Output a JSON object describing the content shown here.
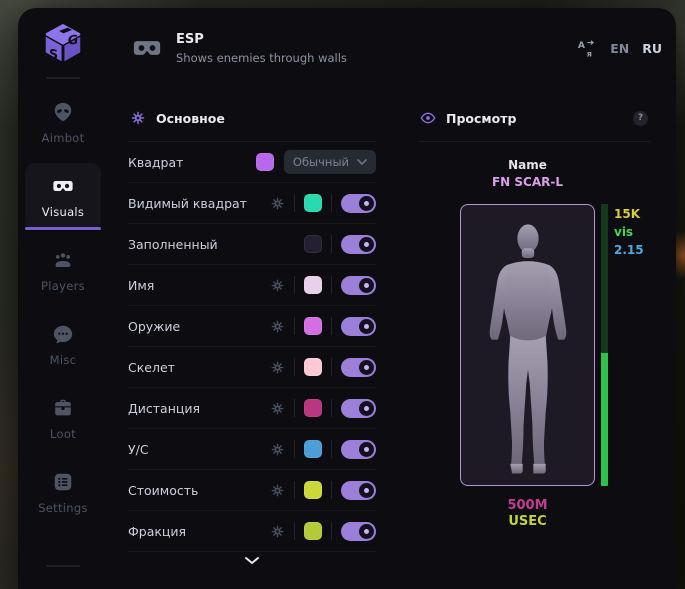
{
  "window": {
    "header": {
      "title": "ESP",
      "subtitle": "Shows enemies through walls",
      "languages": [
        {
          "code": "EN",
          "active": false
        },
        {
          "code": "RU",
          "active": true
        }
      ]
    },
    "sidebar": {
      "items": [
        {
          "id": "aimbot",
          "label": "Aimbot",
          "icon": "alien-icon",
          "active": false
        },
        {
          "id": "visuals",
          "label": "Visuals",
          "icon": "goggles-icon",
          "active": true
        },
        {
          "id": "players",
          "label": "Players",
          "icon": "players-icon",
          "active": false
        },
        {
          "id": "misc",
          "label": "Misc",
          "icon": "chat-icon",
          "active": false
        },
        {
          "id": "loot",
          "label": "Loot",
          "icon": "toolbox-icon",
          "active": false
        },
        {
          "id": "settings",
          "label": "Settings",
          "icon": "list-icon",
          "active": false
        }
      ]
    },
    "main_panel": {
      "title": "Основное",
      "rows": [
        {
          "label": "Квадрат",
          "gear": false,
          "swatch": "#b868ec",
          "control": "dropdown",
          "value": "Обычный"
        },
        {
          "label": "Видимый квадрат",
          "gear": true,
          "swatch": "#2bd9b0",
          "control": "toggle",
          "on": true
        },
        {
          "label": "Заполненный",
          "gear": false,
          "swatch": "#242031",
          "control": "toggle",
          "on": true
        },
        {
          "label": "Имя",
          "gear": true,
          "swatch": "#e9d0e9",
          "control": "toggle",
          "on": true
        },
        {
          "label": "Оружие",
          "gear": true,
          "swatch": "#d36fe3",
          "control": "toggle",
          "on": true
        },
        {
          "label": "Скелет",
          "gear": true,
          "swatch": "#ffc9d4",
          "control": "toggle",
          "on": true
        },
        {
          "label": "Дистанция",
          "gear": true,
          "swatch": "#b93680",
          "control": "toggle",
          "on": true
        },
        {
          "label": "У/С",
          "gear": true,
          "swatch": "#4b9fd6",
          "control": "toggle",
          "on": true
        },
        {
          "label": "Стоимость",
          "gear": true,
          "swatch": "#ccd838",
          "control": "toggle",
          "on": true
        },
        {
          "label": "Фракция",
          "gear": true,
          "swatch": "#b5ca39",
          "control": "toggle",
          "on": true
        }
      ]
    },
    "preview_panel": {
      "title": "Просмотр",
      "help_label": "?",
      "target_name_label": "Name",
      "target_weapon": "FN SCAR-L",
      "stats": [
        {
          "text": "15K",
          "color": "#d8ce3a"
        },
        {
          "text": "vis",
          "color": "#43d654"
        },
        {
          "text": "2.15",
          "color": "#4fa8e0"
        }
      ],
      "distance": "500M",
      "faction": "USEC",
      "colors": {
        "accent": "#9b7fd9",
        "box_border": "#b993d6",
        "health": "#2fc24a",
        "health_bg": "#16381f",
        "health_fill_pct": 47,
        "distance": "#c13b93",
        "faction": "#c3d437"
      }
    }
  }
}
